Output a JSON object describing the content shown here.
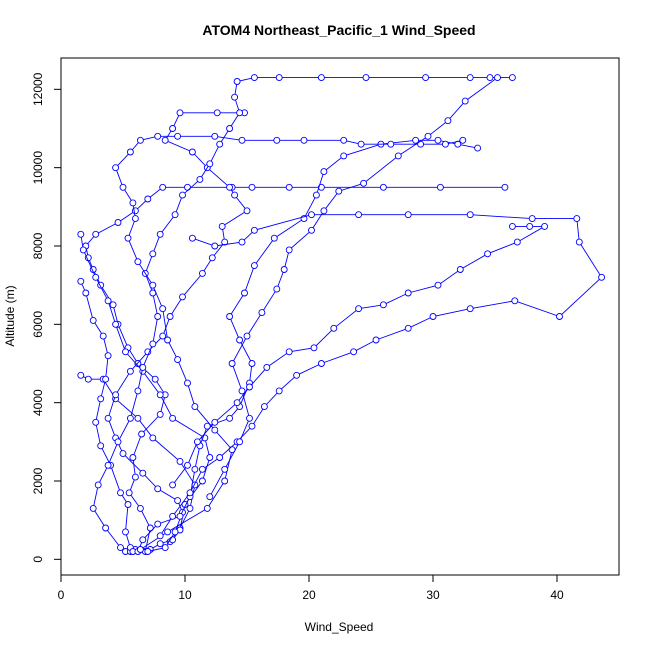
{
  "chart_data": {
    "type": "line",
    "title": "ATOM4 Northeast_Pacific_1 Wind_Speed",
    "xlabel": "Wind_Speed",
    "ylabel": "Altitude (m)",
    "xlim": [
      0,
      45
    ],
    "ylim": [
      -400,
      12800
    ],
    "xticks": [
      0,
      10,
      20,
      30,
      40
    ],
    "yticks": [
      0,
      2000,
      4000,
      6000,
      8000,
      10000,
      12000
    ],
    "grid": false,
    "legend": "none",
    "series_color": "#0000ff",
    "marker": "open-circle",
    "series": [
      {
        "values": [
          [
            5.2,
            200
          ],
          [
            5.6,
            200
          ],
          [
            6.8,
            200
          ],
          [
            7.2,
            800
          ],
          [
            6.4,
            1300
          ],
          [
            5.5,
            1700
          ],
          [
            6.0,
            2100
          ],
          [
            5.8,
            2600
          ],
          [
            6.5,
            3200
          ],
          [
            8.0,
            3700
          ],
          [
            8.4,
            4200
          ],
          [
            7.6,
            4600
          ],
          [
            6.2,
            5000
          ],
          [
            5.4,
            5400
          ],
          [
            4.6,
            6000
          ],
          [
            4.2,
            6500
          ],
          [
            3.2,
            7000
          ],
          [
            2.6,
            7400
          ],
          [
            2.2,
            7700
          ],
          [
            2.0,
            8000
          ],
          [
            2.8,
            8300
          ],
          [
            4.6,
            8600
          ],
          [
            6.0,
            8900
          ],
          [
            7.0,
            9200
          ],
          [
            8.2,
            9500
          ],
          [
            10.2,
            9500
          ],
          [
            13.8,
            9500
          ],
          [
            15.4,
            9500
          ],
          [
            18.4,
            9500
          ],
          [
            21.0,
            9500
          ],
          [
            26.0,
            9500
          ],
          [
            30.6,
            9500
          ],
          [
            35.8,
            9500
          ]
        ]
      },
      {
        "values": [
          [
            8.8,
            450
          ],
          [
            9.6,
            800
          ],
          [
            10.4,
            1300
          ],
          [
            10.8,
            1900
          ],
          [
            9.6,
            2500
          ],
          [
            7.4,
            3100
          ],
          [
            6.2,
            3600
          ],
          [
            4.4,
            4100
          ],
          [
            3.4,
            4600
          ],
          [
            2.2,
            4600
          ],
          [
            1.6,
            4700
          ]
        ]
      },
      {
        "values": [
          [
            6.0,
            250
          ],
          [
            7.2,
            250
          ],
          [
            8.0,
            400
          ],
          [
            9.0,
            500
          ],
          [
            9.6,
            750
          ],
          [
            10.0,
            1400
          ],
          [
            11.4,
            2000
          ],
          [
            12.0,
            2600
          ],
          [
            11.6,
            3100
          ],
          [
            9.0,
            3600
          ],
          [
            8.0,
            4200
          ],
          [
            6.6,
            4800
          ],
          [
            5.2,
            5300
          ],
          [
            4.4,
            6000
          ],
          [
            3.8,
            6600
          ],
          [
            2.8,
            7200
          ],
          [
            1.8,
            7900
          ],
          [
            1.6,
            8300
          ]
        ]
      },
      {
        "values": [
          [
            7.0,
            200
          ],
          [
            8.4,
            300
          ],
          [
            9.2,
            700
          ],
          [
            9.8,
            1200
          ],
          [
            9.4,
            1500
          ],
          [
            7.8,
            1800
          ],
          [
            6.6,
            2200
          ],
          [
            5.0,
            2700
          ],
          [
            4.4,
            3100
          ],
          [
            3.8,
            3600
          ],
          [
            4.4,
            4200
          ],
          [
            5.6,
            4800
          ],
          [
            7.0,
            5300
          ],
          [
            8.2,
            5700
          ],
          [
            8.8,
            6200
          ],
          [
            9.8,
            6700
          ],
          [
            11.4,
            7300
          ],
          [
            12.2,
            7700
          ],
          [
            13.2,
            8100
          ],
          [
            13.0,
            8500
          ],
          [
            15.0,
            8900
          ],
          [
            14.0,
            9300
          ],
          [
            13.6,
            9500
          ],
          [
            11.8,
            10000
          ],
          [
            10.6,
            10400
          ],
          [
            8.4,
            10700
          ],
          [
            9.0,
            11000
          ],
          [
            9.6,
            11400
          ],
          [
            12.6,
            11400
          ],
          [
            14.8,
            11400
          ]
        ]
      },
      {
        "values": [
          [
            5.6,
            300
          ],
          [
            5.2,
            700
          ],
          [
            5.4,
            1400
          ],
          [
            4.8,
            1700
          ],
          [
            4.0,
            2400
          ],
          [
            3.2,
            2900
          ],
          [
            2.8,
            3500
          ],
          [
            3.2,
            4100
          ],
          [
            3.6,
            4600
          ],
          [
            3.8,
            5200
          ],
          [
            3.4,
            5700
          ],
          [
            2.6,
            6100
          ],
          [
            2.0,
            6800
          ],
          [
            1.6,
            7100
          ]
        ]
      },
      {
        "values": [
          [
            5.8,
            200
          ],
          [
            6.2,
            200
          ],
          [
            6.6,
            500
          ],
          [
            7.8,
            900
          ],
          [
            9.6,
            1100
          ],
          [
            10.4,
            1600
          ],
          [
            10.8,
            2300
          ],
          [
            11.2,
            2900
          ],
          [
            11.8,
            3400
          ],
          [
            13.6,
            3600
          ],
          [
            14.4,
            3900
          ],
          [
            15.2,
            4500
          ],
          [
            15.4,
            5000
          ],
          [
            14.4,
            5600
          ],
          [
            13.6,
            6200
          ],
          [
            14.8,
            6800
          ],
          [
            15.6,
            7500
          ],
          [
            17.2,
            8200
          ],
          [
            19.6,
            8700
          ],
          [
            20.6,
            9300
          ],
          [
            21.2,
            9900
          ],
          [
            22.8,
            10300
          ],
          [
            25.8,
            10600
          ],
          [
            28.6,
            10700
          ],
          [
            30.4,
            10700
          ],
          [
            32.0,
            10600
          ],
          [
            33.6,
            10500
          ]
        ]
      },
      {
        "values": [
          [
            4.8,
            300
          ],
          [
            3.6,
            800
          ],
          [
            2.6,
            1300
          ],
          [
            3.0,
            1900
          ],
          [
            3.8,
            2400
          ],
          [
            4.6,
            3000
          ],
          [
            5.6,
            3600
          ],
          [
            6.2,
            4300
          ],
          [
            6.6,
            4900
          ],
          [
            7.4,
            5500
          ],
          [
            7.8,
            6200
          ],
          [
            7.4,
            6800
          ],
          [
            6.8,
            7300
          ],
          [
            7.4,
            7800
          ],
          [
            8.0,
            8300
          ],
          [
            9.2,
            8800
          ],
          [
            9.8,
            9300
          ],
          [
            11.2,
            9700
          ],
          [
            12.0,
            10100
          ],
          [
            12.8,
            10600
          ],
          [
            13.6,
            11000
          ],
          [
            14.4,
            11400
          ],
          [
            14.0,
            11800
          ],
          [
            14.2,
            12200
          ],
          [
            15.6,
            12300
          ],
          [
            17.6,
            12300
          ],
          [
            21.0,
            12300
          ],
          [
            24.6,
            12300
          ],
          [
            29.4,
            12300
          ],
          [
            33.0,
            12300
          ],
          [
            36.4,
            12300
          ]
        ]
      },
      {
        "values": [
          [
            6.4,
            250
          ],
          [
            8.6,
            700
          ],
          [
            11.8,
            1300
          ],
          [
            13.2,
            2000
          ],
          [
            13.8,
            2800
          ],
          [
            12.4,
            3300
          ],
          [
            10.8,
            3900
          ],
          [
            10.2,
            4500
          ],
          [
            9.4,
            5100
          ],
          [
            8.6,
            5600
          ],
          [
            8.2,
            6400
          ],
          [
            7.4,
            7000
          ],
          [
            6.2,
            7600
          ],
          [
            5.4,
            8200
          ],
          [
            6.0,
            8700
          ],
          [
            5.8,
            9100
          ],
          [
            5.0,
            9500
          ],
          [
            4.4,
            10000
          ],
          [
            5.6,
            10400
          ],
          [
            6.4,
            10700
          ],
          [
            7.8,
            10800
          ],
          [
            9.4,
            10800
          ],
          [
            12.4,
            10800
          ],
          [
            14.6,
            10700
          ],
          [
            17.4,
            10700
          ],
          [
            19.6,
            10700
          ],
          [
            22.8,
            10700
          ],
          [
            24.2,
            10600
          ],
          [
            26.6,
            10600
          ],
          [
            29.0,
            10600
          ],
          [
            31.0,
            10600
          ],
          [
            32.4,
            10700
          ]
        ]
      },
      {
        "values": [
          [
            8.0,
            600
          ],
          [
            9.0,
            1100
          ],
          [
            10.4,
            1700
          ],
          [
            11.4,
            2300
          ],
          [
            12.8,
            2600
          ],
          [
            14.2,
            3000
          ],
          [
            15.4,
            3400
          ],
          [
            16.4,
            3900
          ],
          [
            17.6,
            4300
          ],
          [
            19.0,
            4700
          ],
          [
            21.0,
            5000
          ],
          [
            23.6,
            5300
          ],
          [
            25.4,
            5600
          ],
          [
            28.0,
            5900
          ],
          [
            30.0,
            6200
          ],
          [
            33.0,
            6400
          ],
          [
            36.6,
            6600
          ],
          [
            40.2,
            6200
          ],
          [
            43.6,
            7200
          ],
          [
            41.8,
            8100
          ],
          [
            41.6,
            8700
          ],
          [
            38.0,
            8700
          ],
          [
            33.0,
            8800
          ],
          [
            28.0,
            8800
          ],
          [
            24.0,
            8800
          ],
          [
            20.2,
            8800
          ],
          [
            15.6,
            8400
          ],
          [
            14.6,
            8100
          ],
          [
            12.4,
            8000
          ],
          [
            10.6,
            8200
          ]
        ]
      },
      {
        "values": [
          [
            9.0,
            1900
          ],
          [
            10.2,
            2400
          ],
          [
            11.0,
            3000
          ],
          [
            12.4,
            3500
          ],
          [
            14.2,
            4000
          ],
          [
            15.2,
            4400
          ],
          [
            16.6,
            4900
          ],
          [
            18.4,
            5300
          ],
          [
            20.4,
            5400
          ],
          [
            22.0,
            5900
          ],
          [
            24.0,
            6400
          ],
          [
            26.0,
            6500
          ],
          [
            28.0,
            6800
          ],
          [
            30.4,
            7000
          ],
          [
            32.2,
            7400
          ],
          [
            34.4,
            7800
          ],
          [
            36.8,
            8100
          ],
          [
            39.0,
            8500
          ],
          [
            37.8,
            8500
          ],
          [
            36.4,
            8500
          ]
        ]
      },
      {
        "values": [
          [
            12.0,
            1600
          ],
          [
            13.2,
            2300
          ],
          [
            14.4,
            3000
          ],
          [
            15.2,
            3600
          ],
          [
            14.6,
            4300
          ],
          [
            13.8,
            5000
          ],
          [
            15.0,
            5700
          ],
          [
            16.2,
            6300
          ],
          [
            17.4,
            6900
          ],
          [
            18.0,
            7400
          ],
          [
            18.4,
            7900
          ],
          [
            20.2,
            8400
          ],
          [
            21.2,
            8900
          ],
          [
            22.4,
            9400
          ],
          [
            24.4,
            9600
          ],
          [
            27.2,
            10300
          ],
          [
            29.6,
            10800
          ],
          [
            31.2,
            11200
          ],
          [
            32.6,
            11700
          ],
          [
            35.2,
            12300
          ],
          [
            34.6,
            12300
          ]
        ]
      }
    ]
  },
  "x_tick_labels": [
    "0",
    "10",
    "20",
    "30",
    "40"
  ],
  "y_tick_labels": [
    "0",
    "2000",
    "4000",
    "6000",
    "8000",
    "10000",
    "12000"
  ]
}
